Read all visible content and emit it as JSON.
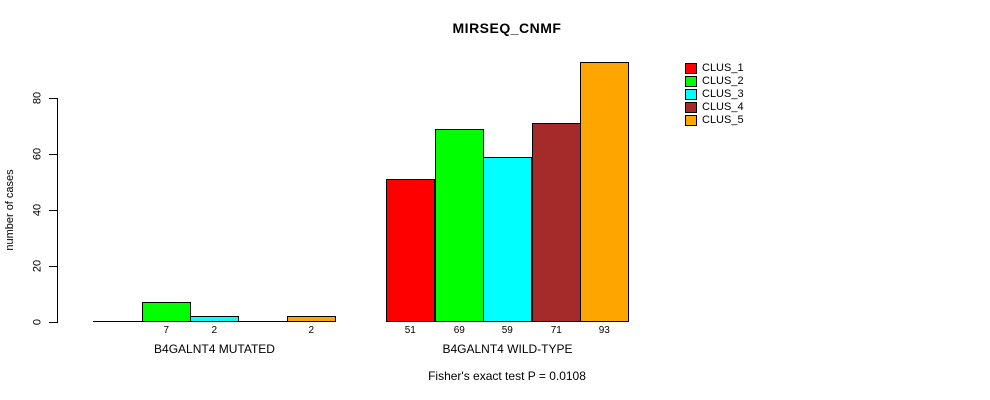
{
  "chart_data": {
    "type": "bar",
    "title": "MIRSEQ_CNMF",
    "ylabel": "number of cases",
    "xlabel": "",
    "yticks": [
      0,
      20,
      40,
      60,
      80
    ],
    "ylim": [
      0,
      93
    ],
    "grid": false,
    "legend_position": "top-right",
    "categories": [
      "B4GALNT4 MUTATED",
      "B4GALNT4 WILD-TYPE"
    ],
    "series": [
      {
        "name": "CLUS_1",
        "color": "#FF0000",
        "values": [
          0,
          51
        ]
      },
      {
        "name": "CLUS_2",
        "color": "#00FF00",
        "values": [
          7,
          69
        ]
      },
      {
        "name": "CLUS_3",
        "color": "#00FFFF",
        "values": [
          2,
          59
        ]
      },
      {
        "name": "CLUS_4",
        "color": "#A52A2A",
        "values": [
          0,
          71
        ]
      },
      {
        "name": "CLUS_5",
        "color": "#FFA500",
        "values": [
          2,
          93
        ]
      }
    ],
    "bar_value_labels": {
      "B4GALNT4 MUTATED": [
        null,
        7,
        2,
        null,
        2
      ],
      "B4GALNT4 WILD-TYPE": [
        51,
        69,
        59,
        71,
        93
      ]
    },
    "footnote": "Fisher's exact test P = 0.0108"
  }
}
